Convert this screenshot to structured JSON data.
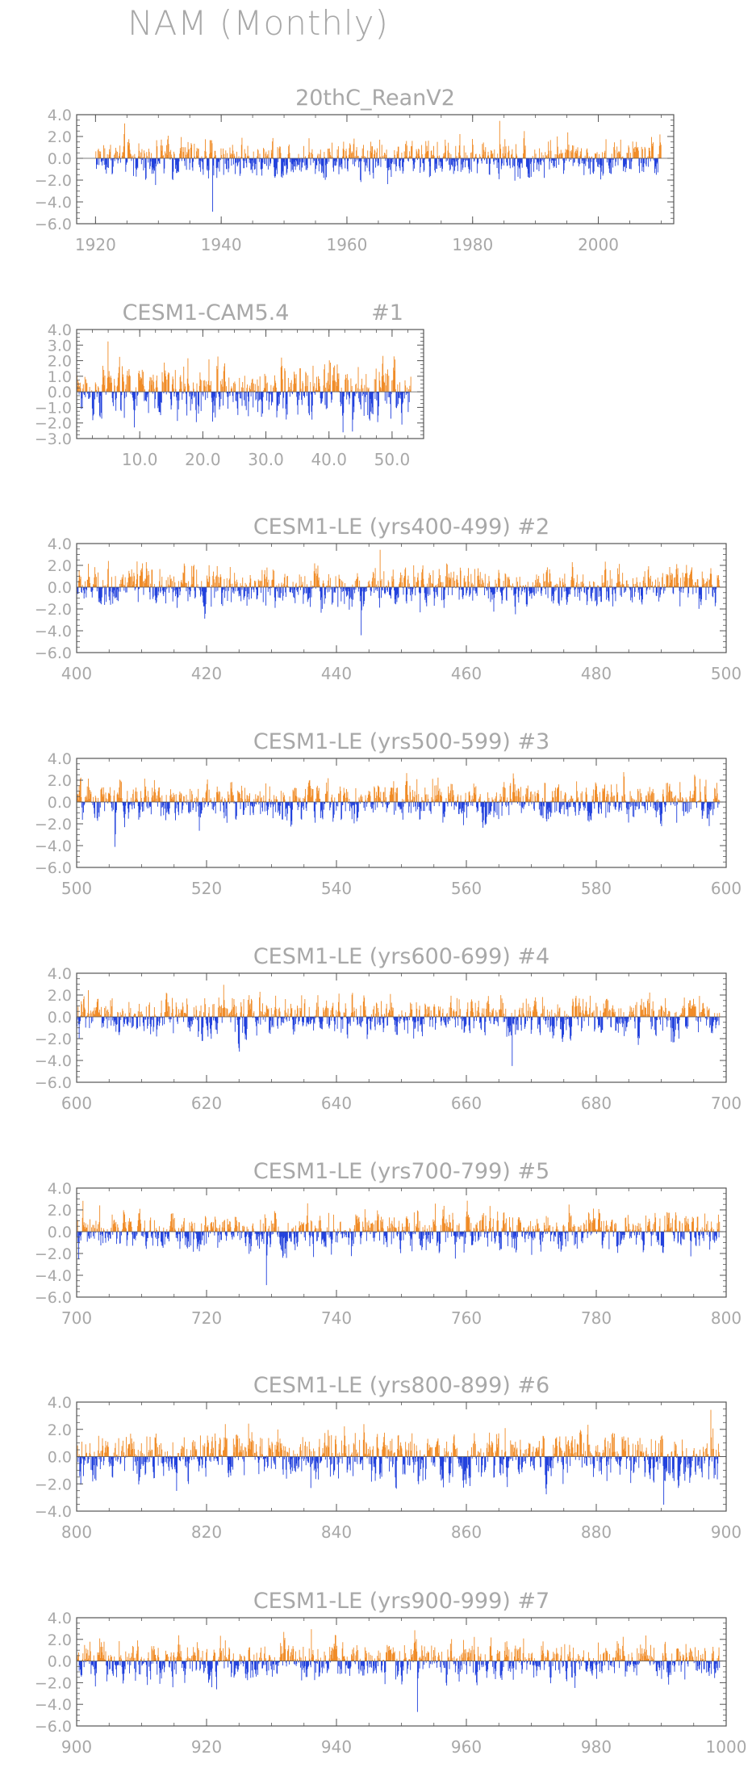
{
  "page_title": "NAM (Monthly)",
  "colors": {
    "positive": "#f08a24",
    "negative": "#1f3fdc",
    "axis": "#555555",
    "text": "#a8a8a8"
  },
  "chart_data": [
    {
      "type": "bar",
      "title": "20thC_ReanV2",
      "x_range": [
        1920,
        2010
      ],
      "xlim": [
        1917,
        2012
      ],
      "xticks": [
        1920,
        1940,
        1960,
        1980,
        2000
      ],
      "xtick_labels": [
        "1920",
        "1940",
        "1960",
        "1980",
        "2000"
      ],
      "ylim": [
        -6,
        4
      ],
      "yticks": [
        4,
        2,
        0,
        -2,
        -4,
        -6
      ],
      "ytick_labels": [
        "4.0",
        "2.0",
        "0.0",
        "−2.0",
        "−4.0",
        "−6.0"
      ],
      "observed_range": [
        -5.0,
        3.5
      ],
      "grid": false
    },
    {
      "type": "bar",
      "title": "CESM1-CAM5.4",
      "title_suffix": "#1",
      "x_range": [
        0,
        53
      ],
      "xlim": [
        0,
        55
      ],
      "xticks": [
        10,
        20,
        30,
        40,
        50
      ],
      "xtick_labels": [
        "10.0",
        "20.0",
        "30.0",
        "40.0",
        "50.0"
      ],
      "ylim": [
        -3,
        4
      ],
      "yticks": [
        4,
        3,
        2,
        1,
        0,
        -1,
        -2,
        -3
      ],
      "ytick_labels": [
        "4.0",
        "3.0",
        "2.0",
        "1.0",
        "0.0",
        "−1.0",
        "−2.0",
        "−3.0"
      ],
      "observed_range": [
        -2.6,
        3.3
      ],
      "grid": false
    },
    {
      "type": "bar",
      "title": "CESM1-LE (yrs400-499) #2",
      "x_range": [
        400,
        499
      ],
      "xlim": [
        400,
        500
      ],
      "xticks": [
        400,
        420,
        440,
        460,
        480,
        500
      ],
      "xtick_labels": [
        "400",
        "420",
        "440",
        "460",
        "480",
        "500"
      ],
      "ylim": [
        -6,
        4
      ],
      "yticks": [
        4,
        2,
        0,
        -2,
        -4,
        -6
      ],
      "ytick_labels": [
        "4.0",
        "2.0",
        "0.0",
        "−2.0",
        "−4.0",
        "−6.0"
      ],
      "observed_range": [
        -4.5,
        3.5
      ],
      "grid": false
    },
    {
      "type": "bar",
      "title": "CESM1-LE (yrs500-599) #3",
      "x_range": [
        500,
        599
      ],
      "xlim": [
        500,
        600
      ],
      "xticks": [
        500,
        520,
        540,
        560,
        580,
        600
      ],
      "xtick_labels": [
        "500",
        "520",
        "540",
        "560",
        "580",
        "600"
      ],
      "ylim": [
        -6,
        4
      ],
      "yticks": [
        4,
        2,
        0,
        -2,
        -4,
        -6
      ],
      "ytick_labels": [
        "4.0",
        "2.0",
        "0.0",
        "−2.0",
        "−4.0",
        "−6.0"
      ],
      "observed_range": [
        -4.2,
        2.8
      ],
      "grid": false
    },
    {
      "type": "bar",
      "title": "CESM1-LE (yrs600-699) #4",
      "x_range": [
        600,
        699
      ],
      "xlim": [
        600,
        700
      ],
      "xticks": [
        600,
        620,
        640,
        660,
        680,
        700
      ],
      "xtick_labels": [
        "600",
        "620",
        "640",
        "660",
        "680",
        "700"
      ],
      "ylim": [
        -6,
        4
      ],
      "yticks": [
        4,
        2,
        0,
        -2,
        -4,
        -6
      ],
      "ytick_labels": [
        "4.0",
        "2.0",
        "0.0",
        "−2.0",
        "−4.0",
        "−6.0"
      ],
      "observed_range": [
        -4.6,
        3.0
      ],
      "grid": false
    },
    {
      "type": "bar",
      "title": "CESM1-LE (yrs700-799) #5",
      "x_range": [
        700,
        799
      ],
      "xlim": [
        700,
        800
      ],
      "xticks": [
        700,
        720,
        740,
        760,
        780,
        800
      ],
      "xtick_labels": [
        "700",
        "720",
        "740",
        "760",
        "780",
        "800"
      ],
      "ylim": [
        -6,
        4
      ],
      "yticks": [
        4,
        2,
        0,
        -2,
        -4,
        -6
      ],
      "ytick_labels": [
        "4.0",
        "2.0",
        "0.0",
        "−2.0",
        "−4.0",
        "−6.0"
      ],
      "observed_range": [
        -5.0,
        2.9
      ],
      "grid": false
    },
    {
      "type": "bar",
      "title": "CESM1-LE (yrs800-899) #6",
      "x_range": [
        800,
        899
      ],
      "xlim": [
        800,
        900
      ],
      "xticks": [
        800,
        820,
        840,
        860,
        880,
        900
      ],
      "xtick_labels": [
        "800",
        "820",
        "840",
        "860",
        "880",
        "900"
      ],
      "ylim": [
        -4,
        4
      ],
      "yticks": [
        4,
        2,
        0,
        -2,
        -4
      ],
      "ytick_labels": [
        "4.0",
        "2.0",
        "0.0",
        "−2.0",
        "−4.0"
      ],
      "observed_range": [
        -3.6,
        3.5
      ],
      "grid": false
    },
    {
      "type": "bar",
      "title": "CESM1-LE (yrs900-999) #7",
      "x_range": [
        900,
        999
      ],
      "xlim": [
        900,
        1000
      ],
      "xticks": [
        900,
        920,
        940,
        960,
        980,
        1000
      ],
      "xtick_labels": [
        "900",
        "920",
        "940",
        "960",
        "980",
        "1000"
      ],
      "ylim": [
        -6,
        4
      ],
      "yticks": [
        4,
        2,
        0,
        -2,
        -4,
        -6
      ],
      "ytick_labels": [
        "4.0",
        "2.0",
        "0.0",
        "−2.0",
        "−4.0",
        "−6.0"
      ],
      "observed_range": [
        -4.8,
        3.0
      ],
      "grid": false
    }
  ]
}
